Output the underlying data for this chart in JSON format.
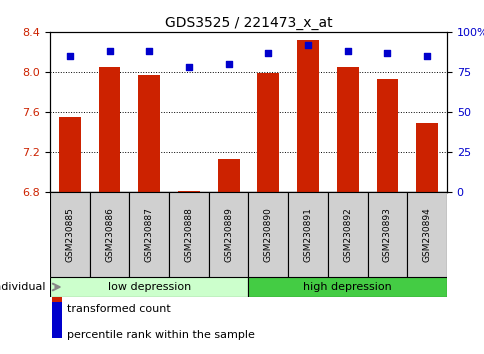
{
  "title": "GDS3525 / 221473_x_at",
  "samples": [
    "GSM230885",
    "GSM230886",
    "GSM230887",
    "GSM230888",
    "GSM230889",
    "GSM230890",
    "GSM230891",
    "GSM230892",
    "GSM230893",
    "GSM230894"
  ],
  "bar_values": [
    7.55,
    8.05,
    7.97,
    6.81,
    7.13,
    7.99,
    8.32,
    8.05,
    7.93,
    7.49
  ],
  "dot_values": [
    85,
    88,
    88,
    78,
    80,
    87,
    92,
    88,
    87,
    85
  ],
  "ylim_left": [
    6.8,
    8.4
  ],
  "ylim_right": [
    0,
    100
  ],
  "yticks_left": [
    6.8,
    7.2,
    7.6,
    8.0,
    8.4
  ],
  "yticks_right": [
    0,
    25,
    50,
    75,
    100
  ],
  "bar_color": "#cc2200",
  "dot_color": "#0000cc",
  "group1_label": "low depression",
  "group2_label": "high depression",
  "group1_color": "#ccffcc",
  "group2_color": "#44cc44",
  "group1_indices": [
    0,
    1,
    2,
    3,
    4
  ],
  "group2_indices": [
    5,
    6,
    7,
    8,
    9
  ],
  "legend_bar_label": "transformed count",
  "legend_dot_label": "percentile rank within the sample",
  "individual_label": "individual",
  "sample_box_color": "#d0d0d0",
  "arrow_color": "#888888"
}
